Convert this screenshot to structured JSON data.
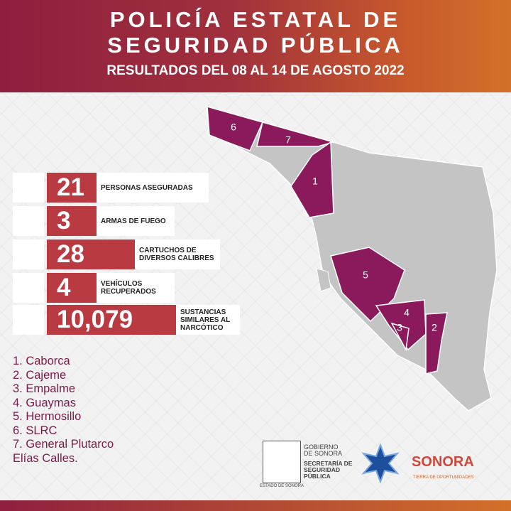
{
  "header": {
    "title_line1": "POLICÍA ESTATAL DE",
    "title_line2": "SEGURIDAD PÚBLICA",
    "subtitle": "RESULTADOS DEL 08 AL 14 DE AGOSTO 2022"
  },
  "stats": [
    {
      "value": "21",
      "label": "PERSONAS ASEGURADAS"
    },
    {
      "value": "3",
      "label": "ARMAS DE FUEGO"
    },
    {
      "value": "28",
      "label": "CARTUCHOS DE\nDIVERSOS CALIBRES"
    },
    {
      "value": "4",
      "label": "VEHÍCULOS\nRECUPERADOS"
    },
    {
      "value": "10,079",
      "label": "SUSTANCIAS\nSIMILARES AL\nNARCÓTICO"
    }
  ],
  "municipalities": [
    "1. Caborca",
    "2. Cajeme",
    "3. Empalme",
    "4. Guaymas",
    "5. Hermosillo",
    "6. SLRC",
    "7. General Plutarco\nElías Calles."
  ],
  "map": {
    "regions": [
      "1",
      "2",
      "3",
      "4",
      "5",
      "6",
      "7"
    ]
  },
  "footer": {
    "gobierno": "GOBIERNO\nDE SONORA",
    "secretaria": "SECRETARÍA DE\nSEGURIDAD\nPÚBLICA",
    "escudo": "ESTADO DE SONORA",
    "sonora": "SONORA",
    "lema": "TIERRA DE OPORTUNIDADES"
  }
}
